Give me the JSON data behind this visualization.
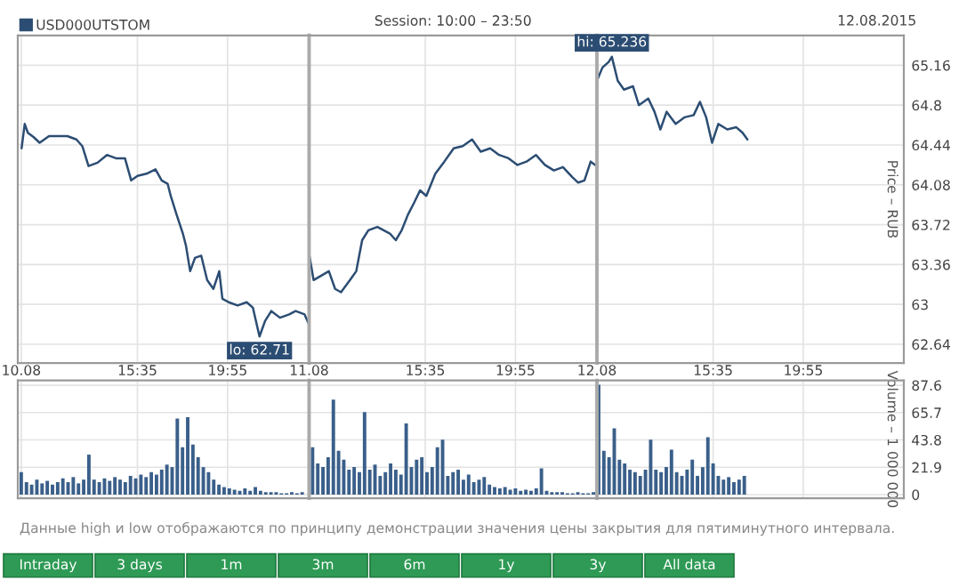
{
  "chart_data": [
    {
      "type": "line",
      "legend": "top left",
      "grid": true,
      "tick_labels": false,
      "marker": "none",
      "line_style": "solid",
      "xlim": [
        "2015-08-10T09:50",
        "2015-08-10T23:50"
      ],
      "ylim": [
        62.47,
        65.43
      ],
      "xticks": [
        {
          "value": "2015-08-10T10:00",
          "label": null
        },
        {
          "value": "2015-08-10T15:35",
          "label": null
        },
        {
          "value": "2015-08-10T19:55",
          "label": null
        }
      ],
      "yticks": [
        62.64,
        63,
        63.36,
        63.72,
        64.08,
        64.44,
        64.8,
        65.16
      ],
      "series": [
        {
          "name": "USD000UTSTOM",
          "color": "#2c4d73",
          "x": [
            "2015-08-10T10:01",
            "2015-08-10T10:10",
            "2015-08-10T10:19",
            "2015-08-10T10:36",
            "2015-08-10T10:53",
            "2015-08-10T11:20",
            "2015-08-10T11:46",
            "2015-08-10T12:13",
            "2015-08-10T12:39",
            "2015-08-10T12:56",
            "2015-08-10T13:14",
            "2015-08-10T13:40",
            "2015-08-10T14:07",
            "2015-08-10T14:33",
            "2015-08-10T14:59",
            "2015-08-10T15:17",
            "2015-08-10T15:35",
            "2015-08-10T16:01",
            "2015-08-10T16:27",
            "2015-08-10T16:45",
            "2015-08-10T17:02",
            "2015-08-10T17:11",
            "2015-08-10T17:28",
            "2015-08-10T17:46",
            "2015-08-10T17:55",
            "2015-08-10T18:07",
            "2015-08-10T18:21",
            "2015-08-10T18:39",
            "2015-08-10T18:56",
            "2015-08-10T19:14",
            "2015-08-10T19:31",
            "2015-08-10T19:40",
            "2015-08-10T19:58",
            "2015-08-10T20:24",
            "2015-08-10T20:50",
            "2015-08-10T21:08",
            "2015-08-10T21:27",
            "2015-08-10T21:43",
            "2015-08-10T22:01",
            "2015-08-10T22:26",
            "2015-08-10T22:53",
            "2015-08-10T23:11",
            "2015-08-10T23:37",
            "2015-08-10T23:48"
          ],
          "values": [
            64.41,
            64.63,
            64.55,
            64.51,
            64.46,
            64.52,
            64.52,
            64.52,
            64.49,
            64.43,
            64.25,
            64.28,
            64.35,
            64.32,
            64.32,
            64.12,
            64.16,
            64.18,
            64.22,
            64.12,
            64.09,
            63.98,
            63.81,
            63.64,
            63.53,
            63.3,
            63.42,
            63.44,
            63.22,
            63.14,
            63.3,
            63.05,
            63.02,
            62.99,
            63.02,
            62.97,
            62.71,
            62.85,
            62.94,
            62.88,
            62.91,
            62.94,
            62.91,
            62.83
          ]
        }
      ],
      "annotations": [
        {
          "text": "lo: 62.71",
          "x": "2015-08-10T21:27",
          "y": 62.71
        }
      ]
    },
    {
      "type": "line",
      "title": "Session: 10:00 – 23:50",
      "grid": true,
      "tick_labels": false,
      "marker": "none",
      "line_style": "solid",
      "xlim": [
        "2015-08-11T10:00",
        "2015-08-11T23:50"
      ],
      "ylim": [
        62.47,
        65.43
      ],
      "xticks": [
        {
          "value": "2015-08-11T10:00",
          "label": null
        },
        {
          "value": "2015-08-11T15:35",
          "label": null
        },
        {
          "value": "2015-08-11T19:55",
          "label": null
        }
      ],
      "yticks": [
        62.64,
        63,
        63.36,
        63.72,
        64.08,
        64.44,
        64.8,
        65.16
      ],
      "series": [
        {
          "color": "#2c4d73",
          "x": [
            "2015-08-11T10:01",
            "2015-08-11T10:13",
            "2015-08-11T10:57",
            "2015-08-11T11:15",
            "2015-08-11T11:32",
            "2015-08-11T11:58",
            "2015-08-11T12:16",
            "2015-08-11T12:33",
            "2015-08-11T12:51",
            "2015-08-11T13:17",
            "2015-08-11T13:53",
            "2015-08-11T14:10",
            "2015-08-11T14:27",
            "2015-08-11T14:45",
            "2015-08-11T15:03",
            "2015-08-11T15:20",
            "2015-08-11T15:38",
            "2015-08-11T16:04",
            "2015-08-11T16:30",
            "2015-08-11T16:57",
            "2015-08-11T17:23",
            "2015-08-11T17:50",
            "2015-08-11T18:15",
            "2015-08-11T18:42",
            "2015-08-11T19:08",
            "2015-08-11T19:35",
            "2015-08-11T20:01",
            "2015-08-11T20:27",
            "2015-08-11T20:54",
            "2015-08-11T21:20",
            "2015-08-11T21:46",
            "2015-08-11T22:12",
            "2015-08-11T22:39",
            "2015-08-11T22:56",
            "2015-08-11T23:14",
            "2015-08-11T23:32",
            "2015-08-11T23:45"
          ],
          "values": [
            63.44,
            63.22,
            63.3,
            63.14,
            63.11,
            63.22,
            63.3,
            63.58,
            63.67,
            63.7,
            63.64,
            63.58,
            63.67,
            63.81,
            63.92,
            64.03,
            63.98,
            64.18,
            64.29,
            64.41,
            64.43,
            64.49,
            64.38,
            64.41,
            64.35,
            64.32,
            64.26,
            64.29,
            64.35,
            64.26,
            64.21,
            64.24,
            64.15,
            64.1,
            64.12,
            64.29,
            64.26
          ]
        }
      ]
    },
    {
      "type": "line",
      "ylabel": "Price – RUB",
      "grid": true,
      "tick_labels": "y",
      "marker": "none",
      "line_style": "solid",
      "xlim": [
        "2015-08-12T10:00",
        "2015-08-13T00:45"
      ],
      "ylim": [
        62.47,
        65.43
      ],
      "xticks": [
        {
          "value": "2015-08-12T10:00",
          "label": null
        },
        {
          "value": "2015-08-12T15:35",
          "label": null
        },
        {
          "value": "2015-08-12T19:55",
          "label": null
        }
      ],
      "yticks": [
        62.64,
        63,
        63.36,
        63.72,
        64.08,
        64.44,
        64.8,
        65.16
      ],
      "series": [
        {
          "color": "#2c4d73",
          "x": [
            "2015-08-12T10:00",
            "2015-08-12T10:16",
            "2015-08-12T10:34",
            "2015-08-12T10:43",
            "2015-08-12T11:00",
            "2015-08-12T11:18",
            "2015-08-12T11:44",
            "2015-08-12T12:01",
            "2015-08-12T12:28",
            "2015-08-12T12:46",
            "2015-08-12T13:03",
            "2015-08-12T13:21",
            "2015-08-12T13:47",
            "2015-08-12T14:13",
            "2015-08-12T14:39",
            "2015-08-12T14:57",
            "2015-08-12T15:15",
            "2015-08-12T15:32",
            "2015-08-12T15:50",
            "2015-08-12T16:16",
            "2015-08-12T16:42",
            "2015-08-12T17:00",
            "2015-08-12T17:14"
          ],
          "values": [
            65.02,
            65.14,
            65.19,
            65.236,
            65.02,
            64.94,
            64.97,
            64.8,
            64.86,
            64.74,
            64.58,
            64.74,
            64.63,
            64.69,
            64.71,
            64.83,
            64.69,
            64.46,
            64.63,
            64.58,
            64.6,
            64.55,
            64.49
          ]
        }
      ],
      "annotations": [
        "12.08.2015",
        {
          "text": "hi: 65.236",
          "x": "2015-08-12T10:43",
          "y": 65.236
        }
      ]
    },
    {
      "type": "bar",
      "grid": true,
      "tick_labels": "x",
      "xlim": [
        "2015-08-10T09:50",
        "2015-08-10T23:50"
      ],
      "ylim": [
        -2.9,
        91.4
      ],
      "xticks": [
        {
          "value": "2015-08-10T10:00",
          "label": "10.08"
        },
        {
          "value": "2015-08-10T15:35",
          "label": "15:35"
        },
        {
          "value": "2015-08-10T19:55",
          "label": "19:55"
        }
      ],
      "yticks": [
        0,
        21.9,
        43.8,
        65.7,
        87.6
      ],
      "series": [
        {
          "color": "#3a5f8a",
          "x": [
            "2015-08-10T10:00",
            "2015-08-10T10:15",
            "2015-08-10T10:30",
            "2015-08-10T10:45",
            "2015-08-10T11:00",
            "2015-08-10T11:15",
            "2015-08-10T11:30",
            "2015-08-10T11:45",
            "2015-08-10T12:00",
            "2015-08-10T12:15",
            "2015-08-10T12:30",
            "2015-08-10T12:45",
            "2015-08-10T13:00",
            "2015-08-10T13:15",
            "2015-08-10T13:30",
            "2015-08-10T13:45",
            "2015-08-10T14:00",
            "2015-08-10T14:15",
            "2015-08-10T14:30",
            "2015-08-10T14:45",
            "2015-08-10T15:00",
            "2015-08-10T15:15",
            "2015-08-10T15:30",
            "2015-08-10T15:45",
            "2015-08-10T16:00",
            "2015-08-10T16:15",
            "2015-08-10T16:30",
            "2015-08-10T16:45",
            "2015-08-10T17:00",
            "2015-08-10T17:15",
            "2015-08-10T17:30",
            "2015-08-10T17:45",
            "2015-08-10T18:00",
            "2015-08-10T18:15",
            "2015-08-10T18:30",
            "2015-08-10T18:45",
            "2015-08-10T19:00",
            "2015-08-10T19:15",
            "2015-08-10T19:30",
            "2015-08-10T19:45",
            "2015-08-10T20:00",
            "2015-08-10T20:15",
            "2015-08-10T20:30",
            "2015-08-10T20:45",
            "2015-08-10T21:00",
            "2015-08-10T21:15",
            "2015-08-10T21:30",
            "2015-08-10T21:45",
            "2015-08-10T22:00",
            "2015-08-10T22:15",
            "2015-08-10T22:30",
            "2015-08-10T22:45",
            "2015-08-10T23:00",
            "2015-08-10T23:15",
            "2015-08-10T23:30"
          ],
          "values": [
            18,
            10,
            8,
            12,
            9,
            11,
            8,
            10,
            13,
            10,
            14,
            9,
            12,
            32,
            12,
            10,
            13,
            11,
            14,
            12,
            10,
            15,
            13,
            16,
            14,
            18,
            16,
            20,
            24,
            22,
            61,
            38,
            62,
            40,
            30,
            22,
            18,
            12,
            8,
            6,
            5,
            4,
            3,
            5,
            3,
            6,
            3,
            2,
            2,
            2,
            1,
            1,
            2,
            1,
            2
          ]
        }
      ],
      "annotations": [
        "Данные high и low отображаются по принципу демонстрации значения цены закрытия для пятиминутного интервала."
      ]
    },
    {
      "type": "bar",
      "grid": true,
      "tick_labels": "x",
      "xlim": [
        "2015-08-11T10:00",
        "2015-08-11T23:50"
      ],
      "ylim": [
        -2.9,
        91.4
      ],
      "xticks": [
        {
          "value": "2015-08-11T10:00",
          "label": "11.08"
        },
        {
          "value": "2015-08-11T15:35",
          "label": "15:35"
        },
        {
          "value": "2015-08-11T19:55",
          "label": "19:55"
        }
      ],
      "yticks": [
        0,
        21.9,
        43.8,
        65.7,
        87.6
      ],
      "series": [
        {
          "color": "#3a5f8a",
          "x": [
            "2015-08-11T10:10",
            "2015-08-11T10:25",
            "2015-08-11T10:40",
            "2015-08-11T10:55",
            "2015-08-11T11:10",
            "2015-08-11T11:25",
            "2015-08-11T11:40",
            "2015-08-11T11:55",
            "2015-08-11T12:10",
            "2015-08-11T12:25",
            "2015-08-11T12:40",
            "2015-08-11T12:55",
            "2015-08-11T13:10",
            "2015-08-11T13:25",
            "2015-08-11T13:40",
            "2015-08-11T13:55",
            "2015-08-11T14:10",
            "2015-08-11T14:25",
            "2015-08-11T14:40",
            "2015-08-11T14:55",
            "2015-08-11T15:10",
            "2015-08-11T15:25",
            "2015-08-11T15:40",
            "2015-08-11T15:55",
            "2015-08-11T16:10",
            "2015-08-11T16:25",
            "2015-08-11T16:40",
            "2015-08-11T16:55",
            "2015-08-11T17:10",
            "2015-08-11T17:25",
            "2015-08-11T17:40",
            "2015-08-11T17:55",
            "2015-08-11T18:10",
            "2015-08-11T18:25",
            "2015-08-11T18:40",
            "2015-08-11T18:55",
            "2015-08-11T19:10",
            "2015-08-11T19:25",
            "2015-08-11T19:40",
            "2015-08-11T19:55",
            "2015-08-11T20:10",
            "2015-08-11T20:25",
            "2015-08-11T20:40",
            "2015-08-11T20:55",
            "2015-08-11T21:10",
            "2015-08-11T21:25",
            "2015-08-11T21:40",
            "2015-08-11T21:55",
            "2015-08-11T22:10",
            "2015-08-11T22:25",
            "2015-08-11T22:40",
            "2015-08-11T22:55",
            "2015-08-11T23:10",
            "2015-08-11T23:25",
            "2015-08-11T23:40"
          ],
          "values": [
            38,
            25,
            22,
            30,
            76,
            35,
            28,
            20,
            22,
            18,
            66,
            20,
            24,
            15,
            18,
            25,
            20,
            16,
            57,
            22,
            28,
            30,
            18,
            22,
            38,
            44,
            15,
            18,
            20,
            12,
            16,
            10,
            12,
            14,
            8,
            6,
            5,
            6,
            4,
            5,
            3,
            4,
            3,
            5,
            21,
            3,
            2,
            2,
            2,
            1,
            1,
            2,
            1,
            1,
            2
          ]
        }
      ]
    },
    {
      "type": "bar",
      "ylabel": "Volume – 1 000 000",
      "grid": true,
      "xlim": [
        "2015-08-12T10:00",
        "2015-08-13T00:45"
      ],
      "ylim": [
        -2.9,
        91.4
      ],
      "xticks": [
        {
          "value": "2015-08-12T10:00",
          "label": "12.08"
        },
        {
          "value": "2015-08-12T15:35",
          "label": "15:35"
        },
        {
          "value": "2015-08-12T19:55",
          "label": "19:55"
        }
      ],
      "yticks": [
        0,
        21.9,
        43.8,
        65.7,
        87.6
      ],
      "series": [
        {
          "color": "#3a5f8a",
          "x": [
            "2015-08-12T10:05",
            "2015-08-12T10:20",
            "2015-08-12T10:35",
            "2015-08-12T10:50",
            "2015-08-12T11:05",
            "2015-08-12T11:20",
            "2015-08-12T11:35",
            "2015-08-12T11:50",
            "2015-08-12T12:05",
            "2015-08-12T12:20",
            "2015-08-12T12:35",
            "2015-08-12T12:50",
            "2015-08-12T13:05",
            "2015-08-12T13:20",
            "2015-08-12T13:35",
            "2015-08-12T13:50",
            "2015-08-12T14:05",
            "2015-08-12T14:20",
            "2015-08-12T14:35",
            "2015-08-12T14:50",
            "2015-08-12T15:05",
            "2015-08-12T15:20",
            "2015-08-12T15:35",
            "2015-08-12T15:50",
            "2015-08-12T16:05",
            "2015-08-12T16:20",
            "2015-08-12T16:35",
            "2015-08-12T16:50",
            "2015-08-12T17:05"
          ],
          "values": [
            88,
            35,
            30,
            53,
            28,
            25,
            20,
            18,
            15,
            20,
            44,
            20,
            18,
            22,
            36,
            18,
            15,
            20,
            28,
            15,
            22,
            46,
            25,
            15,
            12,
            14,
            10,
            12,
            15
          ]
        }
      ]
    },
    {
      "type": "other",
      "annotations": [
        "Intraday",
        "3 days",
        "1m",
        "3m",
        "6m",
        "1y",
        "3y",
        "All data"
      ]
    }
  ]
}
